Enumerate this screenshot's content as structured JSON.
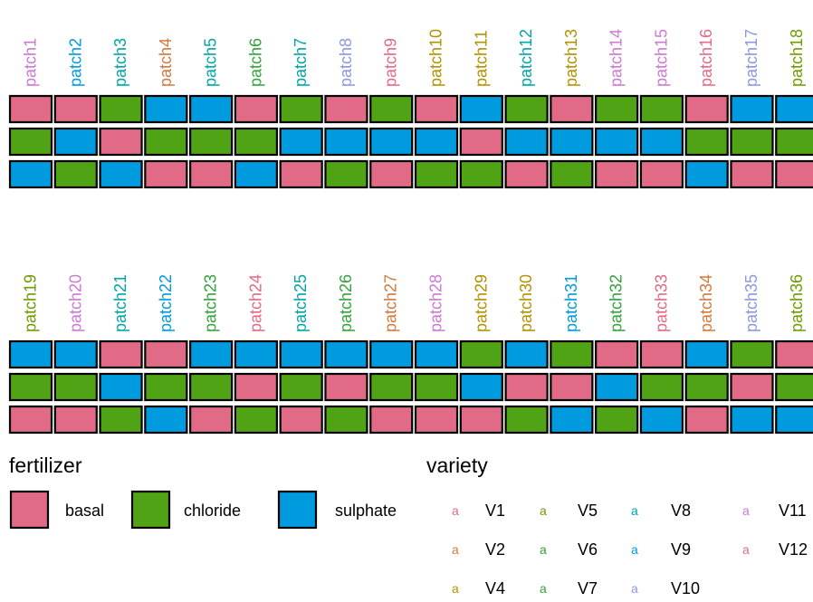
{
  "chart_data": {
    "type": "heatmap",
    "title": "",
    "xlabel": "",
    "ylabel": "",
    "fill_colors": {
      "basal": "#E16A86",
      "chloride": "#50A315",
      "sulphate": "#009ADE"
    },
    "panels": [
      {
        "patches": [
          {
            "label": "patch1",
            "color": "#CC79D0",
            "rows": [
              "basal",
              "chloride",
              "sulphate"
            ]
          },
          {
            "label": "patch2",
            "color": "#009ADE",
            "rows": [
              "basal",
              "sulphate",
              "chloride"
            ]
          },
          {
            "label": "patch3",
            "color": "#00A5A8",
            "rows": [
              "chloride",
              "basal",
              "sulphate"
            ]
          },
          {
            "label": "patch4",
            "color": "#D3793E",
            "rows": [
              "sulphate",
              "chloride",
              "basal"
            ]
          },
          {
            "label": "patch5",
            "color": "#00A5A8",
            "rows": [
              "sulphate",
              "chloride",
              "basal"
            ]
          },
          {
            "label": "patch6",
            "color": "#34A33C",
            "rows": [
              "basal",
              "chloride",
              "sulphate"
            ]
          },
          {
            "label": "patch7",
            "color": "#00A5A8",
            "rows": [
              "chloride",
              "sulphate",
              "basal"
            ]
          },
          {
            "label": "patch8",
            "color": "#8C97E0",
            "rows": [
              "basal",
              "sulphate",
              "chloride"
            ]
          },
          {
            "label": "patch9",
            "color": "#E16A86",
            "rows": [
              "chloride",
              "sulphate",
              "basal"
            ]
          },
          {
            "label": "patch10",
            "color": "#B39100",
            "rows": [
              "basal",
              "sulphate",
              "chloride"
            ]
          },
          {
            "label": "patch11",
            "color": "#B39100",
            "rows": [
              "sulphate",
              "basal",
              "chloride"
            ]
          },
          {
            "label": "patch12",
            "color": "#00A5A8",
            "rows": [
              "chloride",
              "sulphate",
              "basal"
            ]
          },
          {
            "label": "patch13",
            "color": "#B39100",
            "rows": [
              "basal",
              "sulphate",
              "chloride"
            ]
          },
          {
            "label": "patch14",
            "color": "#CC79D0",
            "rows": [
              "chloride",
              "sulphate",
              "basal"
            ]
          },
          {
            "label": "patch15",
            "color": "#CC79D0",
            "rows": [
              "chloride",
              "sulphate",
              "basal"
            ]
          },
          {
            "label": "patch16",
            "color": "#E16A86",
            "rows": [
              "basal",
              "chloride",
              "sulphate"
            ]
          },
          {
            "label": "patch17",
            "color": "#8C97E0",
            "rows": [
              "sulphate",
              "chloride",
              "basal"
            ]
          },
          {
            "label": "patch18",
            "color": "#6F9B00",
            "rows": [
              "sulphate",
              "chloride",
              "basal"
            ]
          }
        ]
      },
      {
        "patches": [
          {
            "label": "patch19",
            "color": "#6F9B00",
            "rows": [
              "sulphate",
              "chloride",
              "basal"
            ]
          },
          {
            "label": "patch20",
            "color": "#CC79D0",
            "rows": [
              "sulphate",
              "chloride",
              "basal"
            ]
          },
          {
            "label": "patch21",
            "color": "#00A5A8",
            "rows": [
              "basal",
              "sulphate",
              "chloride"
            ]
          },
          {
            "label": "patch22",
            "color": "#009ADE",
            "rows": [
              "basal",
              "chloride",
              "sulphate"
            ]
          },
          {
            "label": "patch23",
            "color": "#34A33C",
            "rows": [
              "sulphate",
              "chloride",
              "basal"
            ]
          },
          {
            "label": "patch24",
            "color": "#E16A86",
            "rows": [
              "sulphate",
              "basal",
              "chloride"
            ]
          },
          {
            "label": "patch25",
            "color": "#00A5A8",
            "rows": [
              "sulphate",
              "chloride",
              "basal"
            ]
          },
          {
            "label": "patch26",
            "color": "#34A33C",
            "rows": [
              "sulphate",
              "basal",
              "chloride"
            ]
          },
          {
            "label": "patch27",
            "color": "#D3793E",
            "rows": [
              "sulphate",
              "chloride",
              "basal"
            ]
          },
          {
            "label": "patch28",
            "color": "#CC79D0",
            "rows": [
              "sulphate",
              "chloride",
              "basal"
            ]
          },
          {
            "label": "patch29",
            "color": "#B39100",
            "rows": [
              "chloride",
              "sulphate",
              "basal"
            ]
          },
          {
            "label": "patch30",
            "color": "#B39100",
            "rows": [
              "sulphate",
              "basal",
              "chloride"
            ]
          },
          {
            "label": "patch31",
            "color": "#009ADE",
            "rows": [
              "chloride",
              "basal",
              "sulphate"
            ]
          },
          {
            "label": "patch32",
            "color": "#34A33C",
            "rows": [
              "basal",
              "sulphate",
              "chloride"
            ]
          },
          {
            "label": "patch33",
            "color": "#E16A86",
            "rows": [
              "basal",
              "chloride",
              "sulphate"
            ]
          },
          {
            "label": "patch34",
            "color": "#D3793E",
            "rows": [
              "sulphate",
              "chloride",
              "basal"
            ]
          },
          {
            "label": "patch35",
            "color": "#8C97E0",
            "rows": [
              "chloride",
              "basal",
              "sulphate"
            ]
          },
          {
            "label": "patch36",
            "color": "#6F9B00",
            "rows": [
              "basal",
              "chloride",
              "sulphate"
            ]
          }
        ]
      }
    ],
    "legends": {
      "fertilizer": {
        "title": "fertilizer",
        "items": [
          "basal",
          "chloride",
          "sulphate"
        ]
      },
      "variety": {
        "title": "variety",
        "key_glyph": "a",
        "items": [
          {
            "label": "V1",
            "color": "#E16A86"
          },
          {
            "label": "V2",
            "color": "#D3793E"
          },
          {
            "label": "V4",
            "color": "#B39100"
          },
          {
            "label": "V5",
            "color": "#6F9B00"
          },
          {
            "label": "V6",
            "color": "#34A33C"
          },
          {
            "label": "V7",
            "color": "#34A33C"
          },
          {
            "label": "V8",
            "color": "#00A5A8"
          },
          {
            "label": "V9",
            "color": "#009ADE"
          },
          {
            "label": "V10",
            "color": "#8C97E0"
          },
          {
            "label": "V11",
            "color": "#CC79D0"
          },
          {
            "label": "V12",
            "color": "#E16A86"
          }
        ]
      }
    }
  }
}
